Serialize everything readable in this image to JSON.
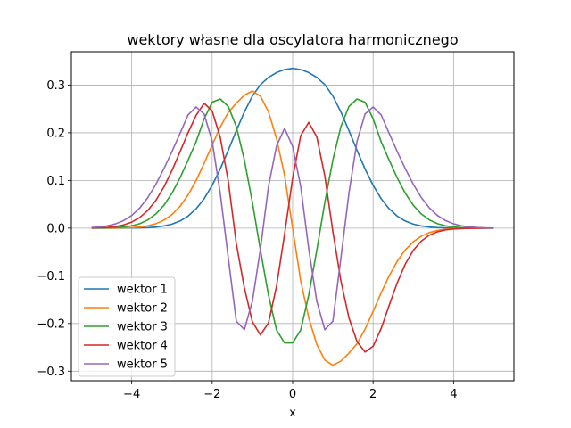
{
  "chart_data": {
    "type": "line",
    "title": "wektory własne dla oscylatora harmonicznego",
    "xlabel": "x",
    "ylabel": "",
    "xlim": [
      -5.5,
      5.5
    ],
    "ylim": [
      -0.32,
      0.37
    ],
    "xticks": [
      -4,
      -2,
      0,
      2,
      4
    ],
    "yticks": [
      -0.3,
      -0.2,
      -0.1,
      0.0,
      0.1,
      0.2,
      0.3
    ],
    "xtick_labels": [
      "−4",
      "−2",
      "0",
      "2",
      "4"
    ],
    "ytick_labels": [
      "−0.3",
      "−0.2",
      "−0.1",
      "0.0",
      "0.1",
      "0.2",
      "0.3"
    ],
    "grid": true,
    "legend_position": "lower-left",
    "x": [
      -5.0,
      -4.8,
      -4.6,
      -4.4,
      -4.2,
      -4.0,
      -3.8,
      -3.6,
      -3.4,
      -3.2,
      -3.0,
      -2.8,
      -2.6,
      -2.4,
      -2.2,
      -2.0,
      -1.8,
      -1.6,
      -1.4,
      -1.2,
      -1.0,
      -0.8,
      -0.6,
      -0.4,
      -0.2,
      0.0,
      0.2,
      0.4,
      0.6,
      0.8,
      1.0,
      1.2,
      1.4,
      1.6,
      1.8,
      2.0,
      2.2,
      2.4,
      2.6,
      2.8,
      3.0,
      3.2,
      3.4,
      3.6,
      3.8,
      4.0,
      4.2,
      4.4,
      4.6,
      4.8,
      5.0
    ],
    "series": [
      {
        "name": "wektor 1",
        "color": "#1f77b4",
        "values": [
          0.0,
          0.0,
          0.0,
          0.0,
          0.0001,
          0.0002,
          0.0005,
          0.0011,
          0.0023,
          0.0045,
          0.0084,
          0.0149,
          0.0252,
          0.0405,
          0.0618,
          0.0898,
          0.1241,
          0.1632,
          0.2043,
          0.2436,
          0.2771,
          0.3009,
          0.3161,
          0.3262,
          0.3326,
          0.335,
          0.3326,
          0.3262,
          0.3161,
          0.3009,
          0.2771,
          0.2436,
          0.2043,
          0.1632,
          0.1241,
          0.0898,
          0.0618,
          0.0405,
          0.0252,
          0.0149,
          0.0084,
          0.0045,
          0.0023,
          0.0011,
          0.0005,
          0.0002,
          0.0001,
          0.0,
          0.0,
          0.0,
          0.0
        ]
      },
      {
        "name": "wektor 2",
        "color": "#ff7f0e",
        "values": [
          0.0,
          0.0,
          0.0001,
          0.0002,
          0.0005,
          0.0011,
          0.0024,
          0.0048,
          0.0092,
          0.0167,
          0.0284,
          0.0456,
          0.0694,
          0.0998,
          0.1358,
          0.1745,
          0.2118,
          0.2425,
          0.2621,
          0.2788,
          0.2877,
          0.2767,
          0.2438,
          0.1879,
          0.1105,
          0.0,
          -0.1105,
          -0.1879,
          -0.2438,
          -0.2767,
          -0.2877,
          -0.2788,
          -0.2621,
          -0.2425,
          -0.2118,
          -0.1745,
          -0.1358,
          -0.0998,
          -0.0694,
          -0.0456,
          -0.0284,
          -0.0167,
          -0.0092,
          -0.0048,
          -0.0024,
          -0.0011,
          -0.0005,
          -0.0002,
          -0.0001,
          0.0,
          0.0
        ]
      },
      {
        "name": "wektor 3",
        "color": "#2ca02c",
        "values": [
          0.0001,
          0.0002,
          0.0005,
          0.0011,
          0.0024,
          0.0049,
          0.0094,
          0.0172,
          0.0296,
          0.0479,
          0.0732,
          0.1053,
          0.1424,
          0.181,
          0.2293,
          0.2641,
          0.2709,
          0.2552,
          0.2131,
          0.1431,
          0.054,
          -0.0466,
          -0.1406,
          -0.2137,
          -0.2407,
          -0.2407,
          -0.2137,
          -0.1406,
          -0.0466,
          0.054,
          0.1431,
          0.2131,
          0.2552,
          0.2709,
          0.2641,
          0.2293,
          0.181,
          0.1424,
          0.1053,
          0.0732,
          0.0479,
          0.0296,
          0.0172,
          0.0094,
          0.0049,
          0.0024,
          0.0011,
          0.0005,
          0.0002,
          0.0001,
          0.0001
        ]
      },
      {
        "name": "wektor 4",
        "color": "#d62728",
        "values": [
          0.0003,
          0.0007,
          0.0016,
          0.0034,
          0.0068,
          0.0127,
          0.0223,
          0.0371,
          0.0582,
          0.0862,
          0.1208,
          0.1599,
          0.2001,
          0.2363,
          0.262,
          0.2458,
          0.1908,
          0.0987,
          -0.0325,
          -0.1252,
          -0.1964,
          -0.2241,
          -0.1986,
          -0.1217,
          -0.0121,
          0.1048,
          0.1938,
          0.2218,
          0.1915,
          0.1094,
          -0.0072,
          -0.1108,
          -0.1883,
          -0.2379,
          -0.2598,
          -0.2478,
          -0.2104,
          -0.1618,
          -0.1146,
          -0.0753,
          -0.0464,
          -0.0269,
          -0.0147,
          -0.0076,
          -0.0037,
          -0.0017,
          -0.0008,
          -0.0003,
          -0.0001,
          0.0,
          0.0
        ]
      },
      {
        "name": "wektor 5",
        "color": "#9467bd",
        "values": [
          0.0012,
          0.0025,
          0.0049,
          0.009,
          0.0158,
          0.0265,
          0.0423,
          0.064,
          0.0918,
          0.1247,
          0.1604,
          0.1985,
          0.2373,
          0.2542,
          0.2393,
          0.1821,
          0.0736,
          -0.0622,
          -0.1952,
          -0.2129,
          -0.1533,
          -0.0433,
          0.0876,
          0.1725,
          0.2093,
          0.1712,
          0.0874,
          -0.0433,
          -0.1533,
          -0.2129,
          -0.1952,
          -0.0622,
          0.0736,
          0.1821,
          0.2393,
          0.2542,
          0.2373,
          0.1985,
          0.1604,
          0.1247,
          0.0918,
          0.064,
          0.0423,
          0.0265,
          0.0158,
          0.009,
          0.0049,
          0.0025,
          0.0012,
          0.0005,
          0.0002
        ]
      }
    ]
  }
}
